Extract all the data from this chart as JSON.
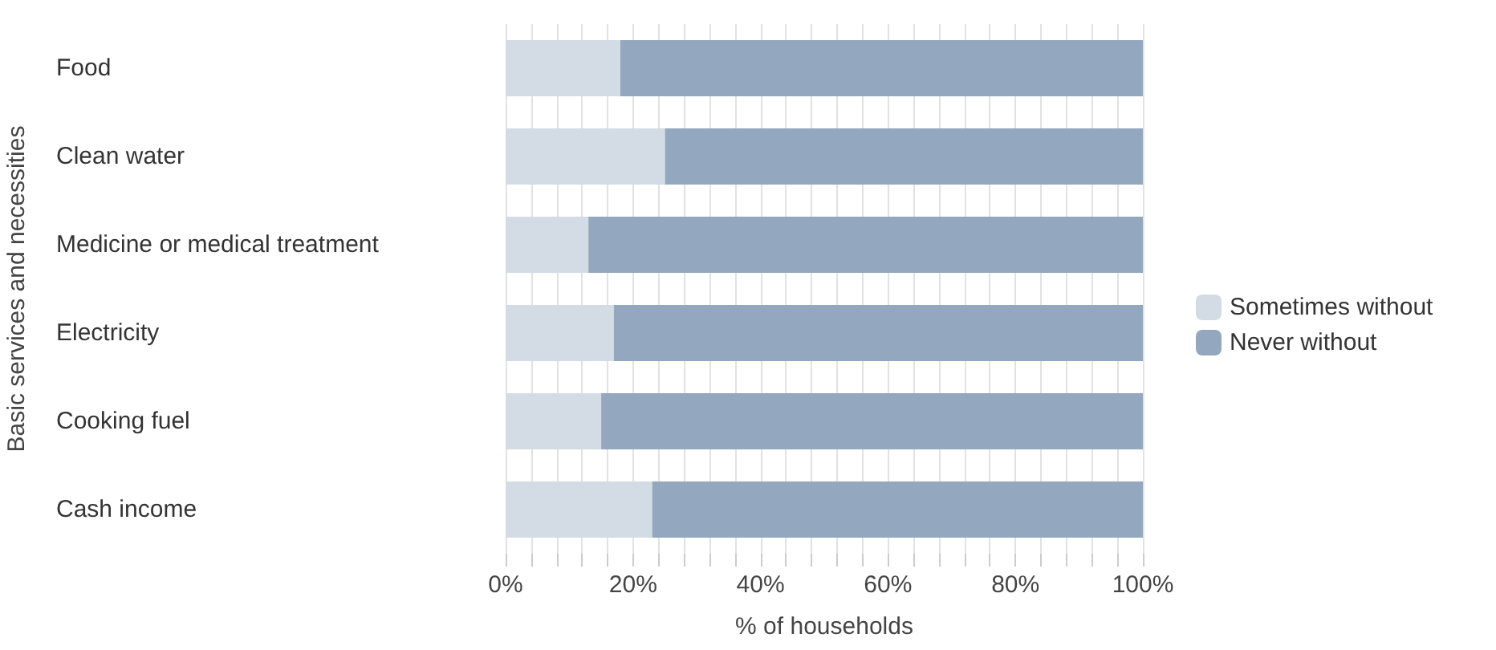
{
  "chart_data": {
    "type": "bar",
    "orientation": "horizontal",
    "stacked": true,
    "ylabel": "Basic services and necessities",
    "xlabel": "% of households",
    "categories": [
      "Food",
      "Clean water",
      "Medicine or medical treatment",
      "Electricity",
      "Cooking fuel",
      "Cash income"
    ],
    "series": [
      {
        "name": "Sometimes without",
        "color": "#d3dce5",
        "values": [
          18,
          25,
          13,
          17,
          15,
          23
        ]
      },
      {
        "name": "Never without",
        "color": "#93a7be",
        "values": [
          82,
          75,
          87,
          83,
          85,
          77
        ]
      }
    ],
    "xlim": [
      0,
      100
    ],
    "xticks": [
      {
        "value": 0,
        "label": "0%"
      },
      {
        "value": 4,
        "label": null
      },
      {
        "value": 8,
        "label": null
      },
      {
        "value": 12,
        "label": null
      },
      {
        "value": 16,
        "label": null
      },
      {
        "value": 20,
        "label": "20%"
      },
      {
        "value": 24,
        "label": null
      },
      {
        "value": 28,
        "label": null
      },
      {
        "value": 32,
        "label": null
      },
      {
        "value": 36,
        "label": null
      },
      {
        "value": 40,
        "label": "40%"
      },
      {
        "value": 44,
        "label": null
      },
      {
        "value": 48,
        "label": null
      },
      {
        "value": 52,
        "label": null
      },
      {
        "value": 56,
        "label": null
      },
      {
        "value": 60,
        "label": "60%"
      },
      {
        "value": 64,
        "label": null
      },
      {
        "value": 68,
        "label": null
      },
      {
        "value": 72,
        "label": null
      },
      {
        "value": 76,
        "label": null
      },
      {
        "value": 80,
        "label": "80%"
      },
      {
        "value": 84,
        "label": null
      },
      {
        "value": 88,
        "label": null
      },
      {
        "value": 92,
        "label": null
      },
      {
        "value": 96,
        "label": null
      },
      {
        "value": 100,
        "label": "100%"
      }
    ],
    "grid": "x",
    "legend": "right"
  }
}
